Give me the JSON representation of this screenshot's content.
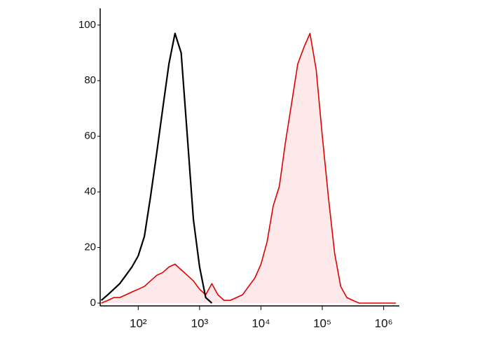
{
  "chart_data": {
    "type": "line",
    "xscale": "log",
    "x": [
      25,
      32,
      40,
      50,
      63,
      79,
      100,
      126,
      158,
      200,
      251,
      316,
      398,
      501,
      631,
      794,
      1000,
      1259,
      1585,
      1995,
      2512,
      3162,
      3981,
      5012,
      6310,
      7943,
      10000,
      12589,
      15849,
      19953,
      25119,
      31623,
      39811,
      50119,
      63096,
      79433,
      100000,
      125893,
      158489,
      199526,
      251189,
      316228,
      398107,
      501187,
      630957,
      794328,
      1000000,
      1258925,
      1584893
    ],
    "series": [
      {
        "color": "#e00000",
        "fill": "#fde8ea",
        "values": [
          0,
          1,
          2,
          2,
          3,
          4,
          5,
          6,
          8,
          10,
          11,
          13,
          14,
          12,
          10,
          8,
          5,
          3,
          7,
          3,
          1,
          1,
          2,
          3,
          6,
          9,
          14,
          22,
          35,
          42,
          58,
          72,
          86,
          92,
          97,
          84,
          60,
          38,
          18,
          6,
          2,
          1,
          0,
          0,
          0,
          0,
          0,
          0,
          0
        ]
      },
      {
        "color": "#000000",
        "values": [
          1,
          3,
          5,
          7,
          10,
          13,
          17,
          24,
          38,
          54,
          70,
          86,
          97,
          90,
          60,
          30,
          13,
          2,
          0,
          null,
          null,
          null,
          null,
          null,
          null,
          null,
          null,
          null,
          null,
          null,
          null,
          null,
          null,
          null,
          null,
          null,
          null,
          null,
          null,
          null,
          null,
          null,
          null,
          null,
          null,
          null,
          null,
          null,
          null
        ]
      }
    ],
    "xlim": [
      24,
      1800000
    ],
    "ylim": [
      -1,
      106
    ],
    "xticks": [
      {
        "value": 100,
        "label": "10²"
      },
      {
        "value": 1000,
        "label": "10³"
      },
      {
        "value": 10000,
        "label": "10⁴"
      },
      {
        "value": 100000,
        "label": "10⁵"
      },
      {
        "value": 1000000,
        "label": "10⁶"
      }
    ],
    "yticks": [
      0,
      20,
      40,
      60,
      80,
      100
    ]
  }
}
